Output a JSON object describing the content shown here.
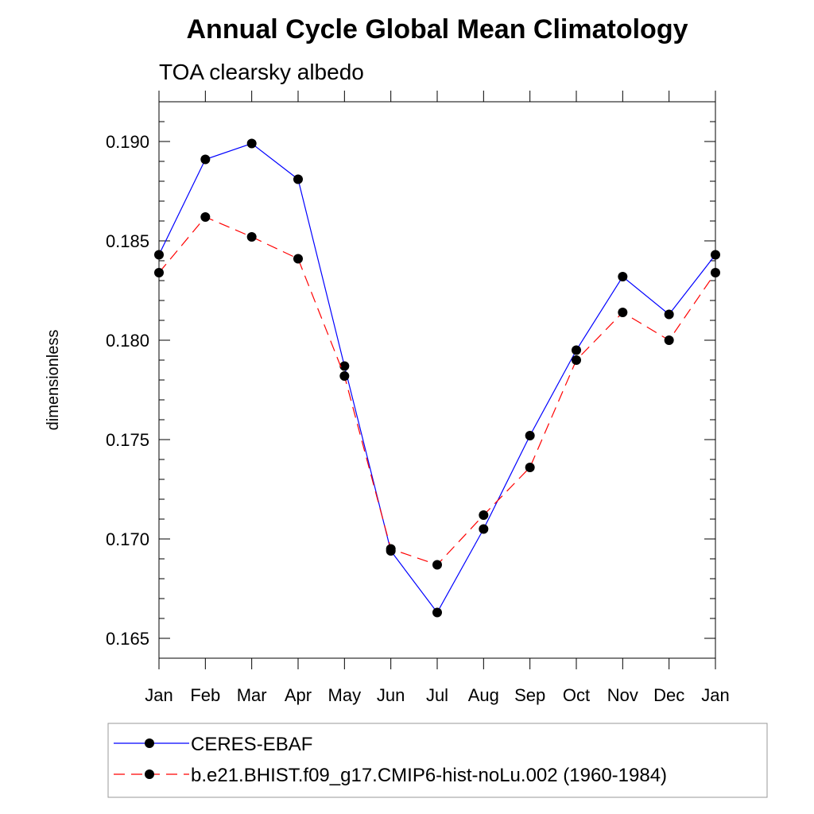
{
  "chart_data": {
    "type": "line",
    "title": "Annual Cycle Global Mean Climatology",
    "subtitle": "TOA clearsky albedo",
    "xlabel": "",
    "ylabel": "dimensionless",
    "categories": [
      "Jan",
      "Feb",
      "Mar",
      "Apr",
      "May",
      "Jun",
      "Jul",
      "Aug",
      "Sep",
      "Oct",
      "Nov",
      "Dec",
      "Jan"
    ],
    "ylim": [
      0.164,
      0.192
    ],
    "yticks": [
      0.165,
      0.17,
      0.175,
      0.18,
      0.185,
      0.19
    ],
    "ytick_labels": [
      "0.165",
      "0.170",
      "0.175",
      "0.180",
      "0.185",
      "0.190"
    ],
    "grid": false,
    "legend_position": "bottom",
    "series": [
      {
        "name": "CERES-EBAF",
        "color": "#0000ff",
        "line_style": "solid",
        "marker": "filled-circle",
        "values": [
          0.1843,
          0.1891,
          0.1899,
          0.1881,
          0.1787,
          0.1694,
          0.1663,
          0.1705,
          0.1752,
          0.1795,
          0.1832,
          0.1813,
          0.1843
        ]
      },
      {
        "name": "b.e21.BHIST.f09_g17.CMIP6-hist-noLu.002 (1960-1984)",
        "color": "#ff0000",
        "line_style": "dashed",
        "marker": "filled-circle",
        "values": [
          0.1834,
          0.1862,
          0.1852,
          0.1841,
          0.1782,
          0.1695,
          0.1687,
          0.1712,
          0.1736,
          0.179,
          0.1814,
          0.18,
          0.1834
        ]
      }
    ]
  }
}
